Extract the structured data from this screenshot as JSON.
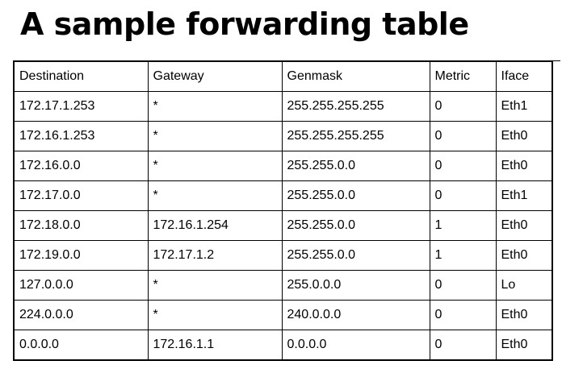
{
  "title": "A sample forwarding table",
  "table": {
    "headers": [
      "Destination",
      "Gateway",
      "Genmask",
      "Metric",
      "Iface"
    ],
    "rows": [
      [
        "172.17.1.253",
        "*",
        "255.255.255.255",
        "0",
        "Eth1"
      ],
      [
        "172.16.1.253",
        "*",
        "255.255.255.255",
        "0",
        "Eth0"
      ],
      [
        "172.16.0.0",
        "*",
        "255.255.0.0",
        "0",
        "Eth0"
      ],
      [
        "172.17.0.0",
        "*",
        "255.255.0.0",
        "0",
        "Eth1"
      ],
      [
        "172.18.0.0",
        "172.16.1.254",
        "255.255.0.0",
        "1",
        "Eth0"
      ],
      [
        "172.19.0.0",
        "172.17.1.2",
        "255.255.0.0",
        "1",
        "Eth0"
      ],
      [
        "127.0.0.0",
        "*",
        "255.0.0.0",
        "0",
        "Lo"
      ],
      [
        "224.0.0.0",
        "*",
        "240.0.0.0",
        "0",
        "Eth0"
      ],
      [
        "0.0.0.0",
        "172.16.1.1",
        "0.0.0.0",
        "0",
        "Eth0"
      ]
    ]
  }
}
